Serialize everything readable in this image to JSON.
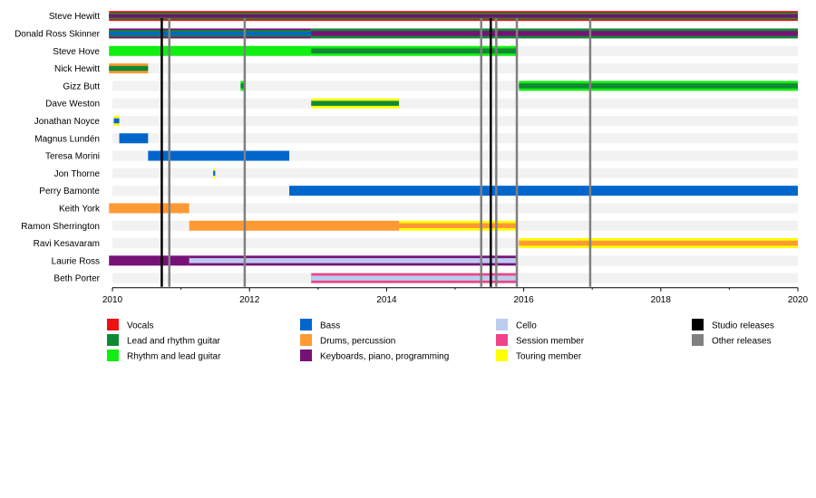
{
  "chart_data": {
    "type": "timeline",
    "title": "",
    "x_range": [
      2010,
      2020
    ],
    "x_ticks": [
      "2010",
      "2012",
      "2014",
      "2016",
      "2018",
      "2020"
    ],
    "members": [
      "Steve Hewitt",
      "Donald Ross Skinner",
      "Steve Hove",
      "Nick Hewitt",
      "Gizz Butt",
      "Dave Weston",
      "Jonathan Noyce",
      "Magnus Lundén",
      "Teresa Morini",
      "Jon Thorne",
      "Perry Bamonte",
      "Keith York",
      "Ramon Sherrington",
      "Ravi Kesavaram",
      "Laurie Ross",
      "Beth Porter"
    ],
    "roles": {
      "vocals": {
        "label": "Vocals",
        "color": "#ee1111"
      },
      "lead_guitar": {
        "label": "Lead and rhythm guitar",
        "color": "#118833"
      },
      "rhythm_guitar": {
        "label": "Rhythm and lead guitar",
        "color": "#11ee11"
      },
      "bass": {
        "label": "Bass",
        "color": "#0066cc"
      },
      "drums": {
        "label": "Drums, percussion",
        "color": "#ff9933"
      },
      "keyboards": {
        "label": "Keyboards, piano, programming",
        "color": "#771177"
      },
      "cello": {
        "label": "Cello",
        "color": "#bbccee"
      },
      "session": {
        "label": "Session member",
        "color": "#ee4488"
      },
      "touring": {
        "label": "Touring member",
        "color": "#ffff00"
      }
    },
    "bars": [
      {
        "member": "Steve Hewitt",
        "start": 2009.95,
        "end": 2020,
        "layers": [
          "vocals",
          "lead_guitar",
          "keyboards"
        ]
      },
      {
        "member": "Donald Ross Skinner",
        "start": 2009.95,
        "end": 2012.9,
        "layers": [
          "keyboards",
          "lead_guitar",
          "bass"
        ]
      },
      {
        "member": "Donald Ross Skinner",
        "start": 2012.9,
        "end": 2020,
        "layers": [
          "lead_guitar",
          "keyboards"
        ]
      },
      {
        "member": "Steve Hove",
        "start": 2009.95,
        "end": 2012.9,
        "layers": [
          "rhythm_guitar"
        ]
      },
      {
        "member": "Steve Hove",
        "start": 2012.9,
        "end": 2015.9,
        "layers": [
          "rhythm_guitar",
          "lead_guitar"
        ]
      },
      {
        "member": "Nick Hewitt",
        "start": 2009.95,
        "end": 2010.52,
        "layers": [
          "drums",
          "lead_guitar"
        ]
      },
      {
        "member": "Gizz Butt",
        "start": 2011.87,
        "end": 2011.93,
        "layers": [
          "rhythm_guitar",
          "lead_guitar"
        ]
      },
      {
        "member": "Gizz Butt",
        "start": 2015.93,
        "end": 2020,
        "layers": [
          "rhythm_guitar",
          "lead_guitar"
        ]
      },
      {
        "member": "Dave Weston",
        "start": 2012.9,
        "end": 2014.18,
        "layers": [
          "touring",
          "lead_guitar"
        ]
      },
      {
        "member": "Jonathan Noyce",
        "start": 2010.02,
        "end": 2010.1,
        "layers": [
          "touring",
          "bass"
        ]
      },
      {
        "member": "Magnus Lundén",
        "start": 2010.1,
        "end": 2010.52,
        "layers": [
          "bass"
        ]
      },
      {
        "member": "Teresa Morini",
        "start": 2010.52,
        "end": 2012.58,
        "layers": [
          "bass"
        ]
      },
      {
        "member": "Jon Thorne",
        "start": 2011.47,
        "end": 2011.5,
        "layers": [
          "touring",
          "bass"
        ]
      },
      {
        "member": "Perry Bamonte",
        "start": 2012.58,
        "end": 2020,
        "layers": [
          "bass"
        ]
      },
      {
        "member": "Keith York",
        "start": 2009.95,
        "end": 2011.12,
        "layers": [
          "drums"
        ]
      },
      {
        "member": "Ramon Sherrington",
        "start": 2011.12,
        "end": 2014.18,
        "layers": [
          "drums"
        ]
      },
      {
        "member": "Ramon Sherrington",
        "start": 2014.18,
        "end": 2015.9,
        "layers": [
          "touring",
          "drums"
        ]
      },
      {
        "member": "Ravi Kesavaram",
        "start": 2015.93,
        "end": 2020,
        "layers": [
          "touring",
          "drums"
        ]
      },
      {
        "member": "Laurie Ross",
        "start": 2009.95,
        "end": 2011.12,
        "layers": [
          "keyboards"
        ]
      },
      {
        "member": "Laurie Ross",
        "start": 2011.12,
        "end": 2015.9,
        "layers": [
          "keyboards",
          "cello"
        ]
      },
      {
        "member": "Beth Porter",
        "start": 2012.9,
        "end": 2015.9,
        "layers": [
          "session",
          "cello"
        ]
      }
    ],
    "releases": [
      {
        "year": 2010.72,
        "kind": "studio"
      },
      {
        "year": 2010.83,
        "kind": "other"
      },
      {
        "year": 2011.93,
        "kind": "other"
      },
      {
        "year": 2015.38,
        "kind": "other"
      },
      {
        "year": 2015.52,
        "kind": "studio"
      },
      {
        "year": 2015.6,
        "kind": "other"
      },
      {
        "year": 2015.9,
        "kind": "other"
      },
      {
        "year": 2016.97,
        "kind": "other"
      }
    ],
    "release_types": {
      "studio": {
        "label": "Studio releases",
        "color": "#000000"
      },
      "other": {
        "label": "Other releases",
        "color": "#808080"
      }
    },
    "legend_columns": [
      [
        "vocals",
        "lead_guitar",
        "rhythm_guitar"
      ],
      [
        "bass",
        "drums",
        "keyboards"
      ],
      [
        "cello",
        "session",
        "touring"
      ],
      [
        "studio",
        "other"
      ]
    ]
  }
}
